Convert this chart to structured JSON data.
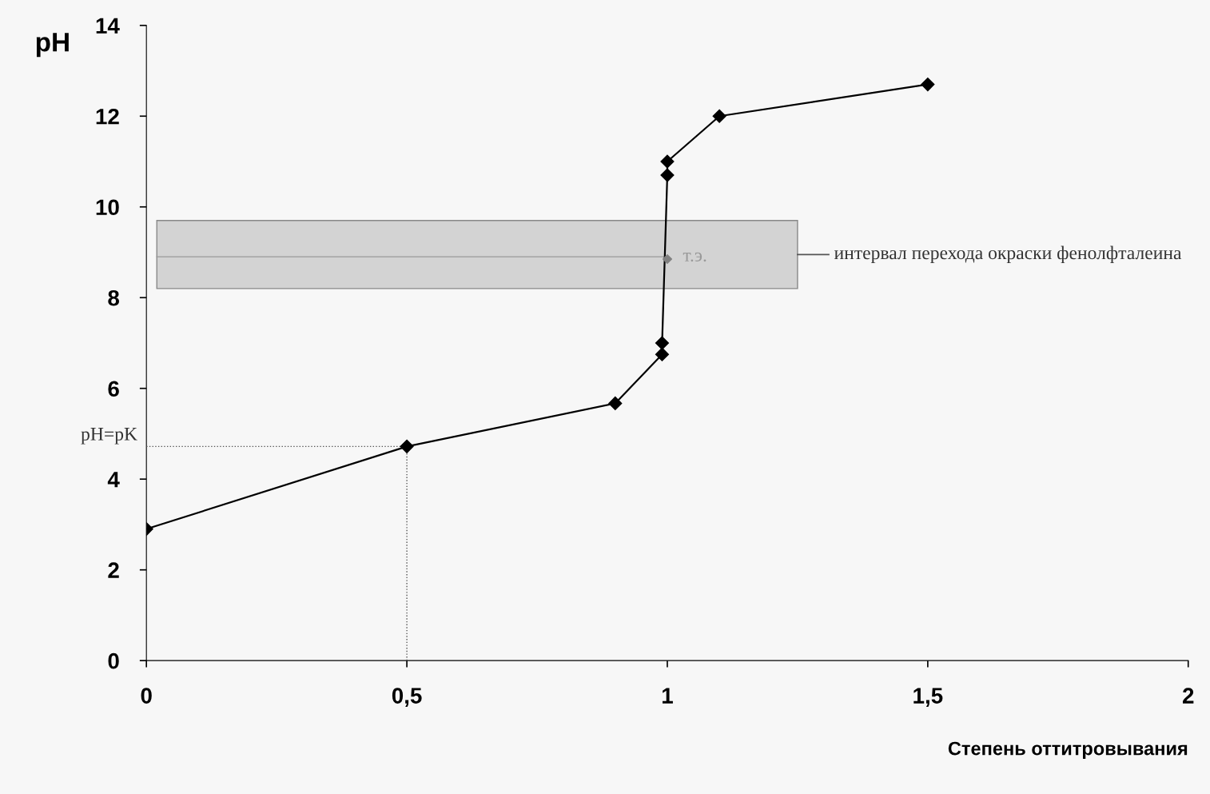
{
  "chart_data": {
    "type": "line",
    "xlabel": "Степень оттитровывания",
    "ylabel": "pH",
    "x": [
      0,
      0.5,
      0.9,
      0.99,
      0.99,
      1.0,
      1.0,
      1.1,
      1.5
    ],
    "series": [
      {
        "color": "#000000",
        "values": [
          2.9,
          4.72,
          5.67,
          6.75,
          7.0,
          10.7,
          11.0,
          12.0,
          12.7
        ]
      },
      {
        "type": "scatter",
        "color": "#808080",
        "x": [
          1.0
        ],
        "values": [
          8.85
        ]
      }
    ],
    "marker": "diamond",
    "line_style": "solid",
    "xlim": [
      0,
      2
    ],
    "xticks": [
      0,
      {
        "value": 0.5,
        "label": "0,5"
      },
      1,
      {
        "value": 1.5,
        "label": "1,5"
      },
      2
    ],
    "ylim": [
      0,
      14
    ],
    "yticks": [
      0,
      2,
      4,
      6,
      8,
      10,
      12,
      14
    ],
    "grid": false,
    "bands": [
      {
        "axis": "y",
        "from": 8.2,
        "to": 9.7,
        "label": "интервал перехода окраски фенолфталеина",
        "color": "#d3d3d3"
      }
    ],
    "ref_lines": [
      {
        "axis": "y",
        "value": 4.72,
        "label": "pH=pK",
        "color": "#555555",
        "line_style": "dotted"
      },
      {
        "axis": "x",
        "value": 0.5,
        "color": "#555555",
        "line_style": "dotted"
      }
    ],
    "annotations": [
      {
        "text": "т.э.",
        "x": 1.0,
        "y": 8.9
      }
    ]
  }
}
